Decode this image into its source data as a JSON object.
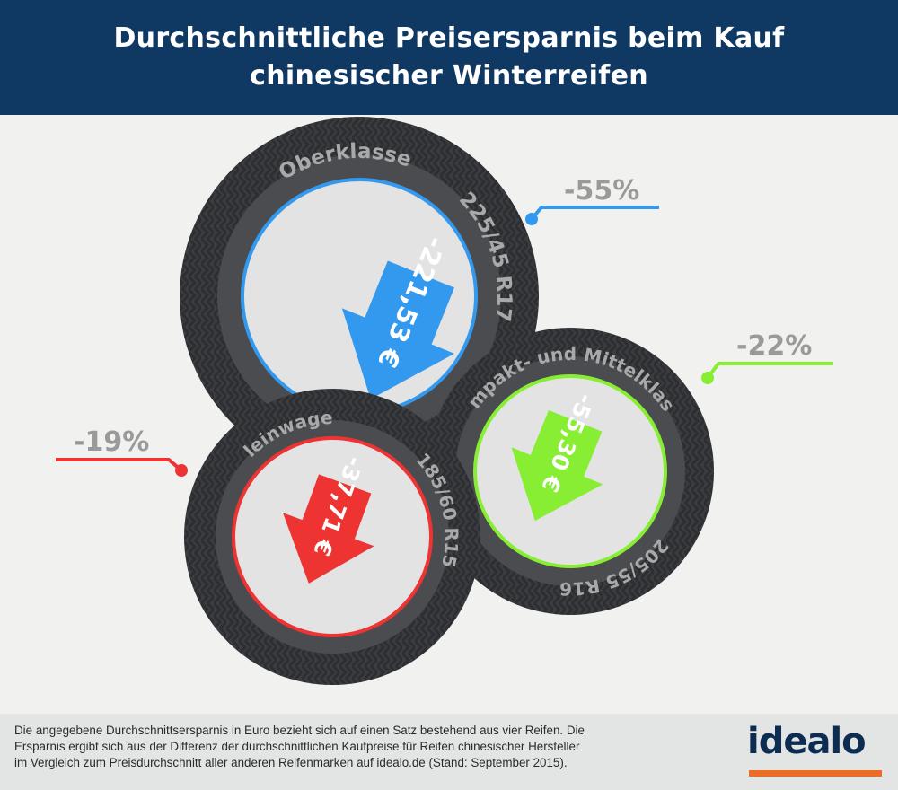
{
  "header": {
    "title_line1": "Durchschnittliche Preisersparnis beim Kauf",
    "title_line2": "chinesischer Winterreifen"
  },
  "chart_data": {
    "type": "bar",
    "series": [
      {
        "class": "Oberklasse",
        "tire_size": "225/45 R17",
        "saving_label": "-221,53 €",
        "saving_eur": 221.53,
        "percent_label": "-55%",
        "percent": -55,
        "color": "#3399ee"
      },
      {
        "class": "Kompakt- und Mittelklasse",
        "tire_size": "205/55 R16",
        "saving_label": "-55,30 €",
        "saving_eur": 55.3,
        "percent_label": "-22%",
        "percent": -22,
        "color": "#88ee33"
      },
      {
        "class": "Kleinwagen",
        "tire_size": "185/60 R15",
        "saving_label": "-37,71 €",
        "saving_eur": 37.71,
        "percent_label": "-19%",
        "percent": -19,
        "color": "#ee3333"
      }
    ]
  },
  "footer": {
    "note_line1": "Die angegebene Durchschnittsersparnis in Euro bezieht sich auf einen Satz bestehend aus vier Reifen. Die",
    "note_line2": "Ersparnis ergibt sich aus der Differenz der durchschnittlichen Kaufpreise für Reifen chinesischer Hersteller",
    "note_line3": "im Vergleich zum Preisdurchschnitt aller anderen Reifenmarken auf idealo.de (Stand: September 2015).",
    "brand": "idealo"
  }
}
